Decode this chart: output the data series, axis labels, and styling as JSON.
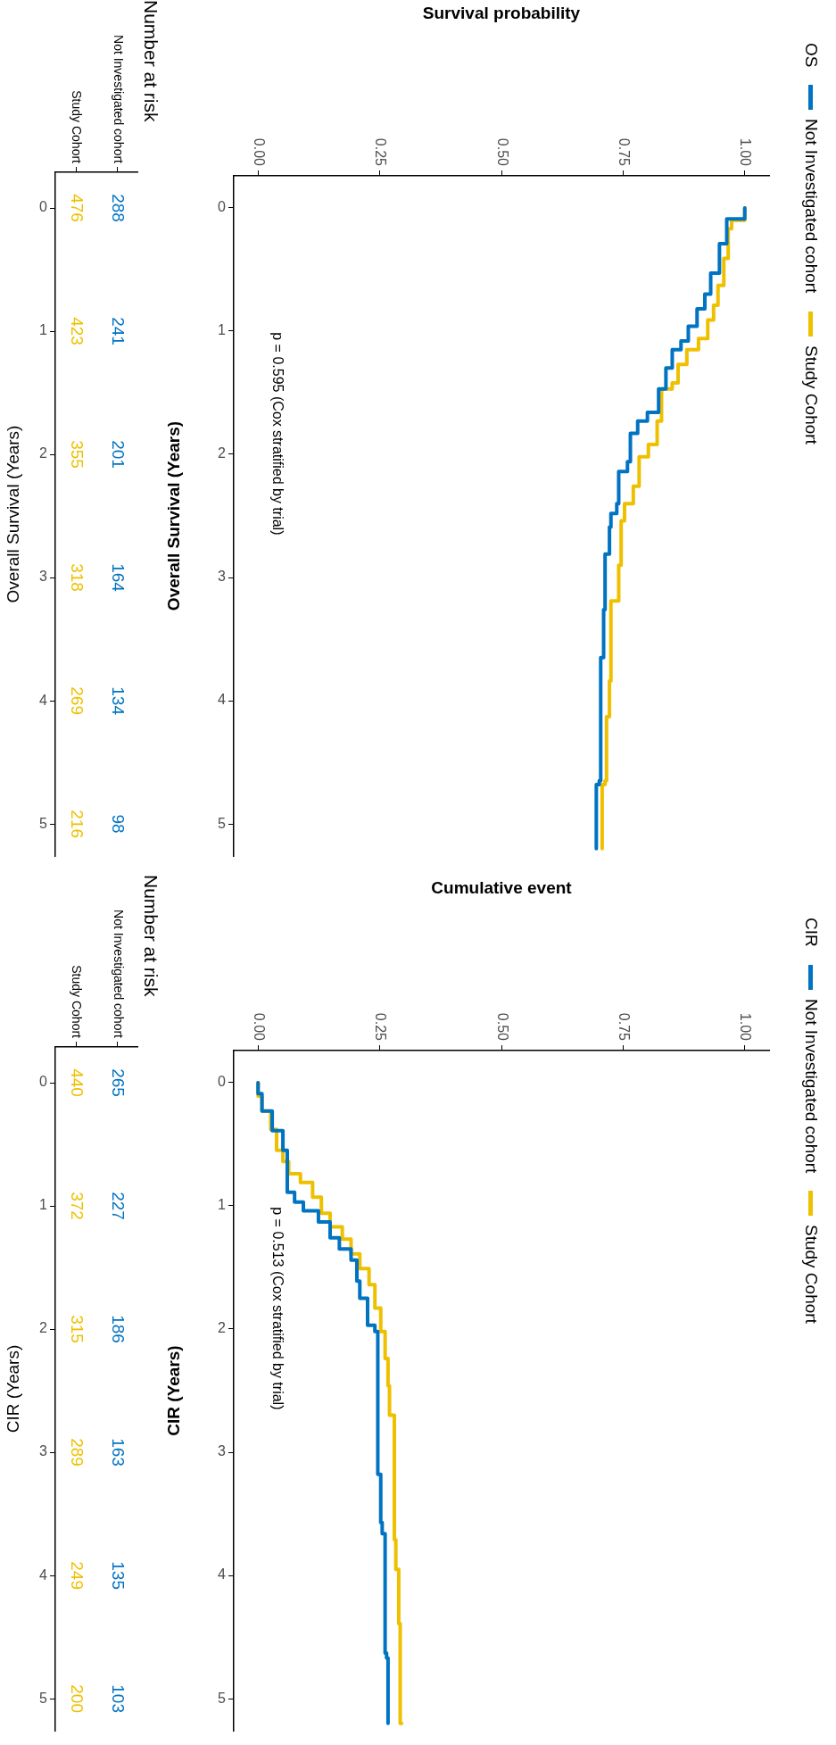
{
  "chart_data": [
    {
      "type": "step",
      "xlabel": "Survival probability",
      "ylabel": "Overall Survival (Years)",
      "legend": "right",
      "legend_title": "OS",
      "ylim": [
        5.26,
        -0.26
      ],
      "yticks": [
        0,
        1,
        2,
        3,
        4,
        5
      ],
      "xlim": [
        -0.05,
        1.05
      ],
      "xticks": [
        {
          "value": 0,
          "label": "0.00"
        },
        {
          "value": 0.25,
          "label": "0.25"
        },
        {
          "value": 0.5,
          "label": "0.50"
        },
        {
          "value": 0.75,
          "label": "0.75"
        },
        {
          "value": 1,
          "label": "1.00"
        }
      ],
      "annotations": [
        "p = 0.595 (Cox stratified by trial)"
      ],
      "series": [
        {
          "name": "Not Investigated cohort",
          "color": "#0073c2",
          "values": [
            0,
            0.09,
            0.29,
            0.53,
            0.7,
            0.82,
            0.96,
            1.08,
            1.15,
            1.3,
            1.47,
            1.66,
            1.73,
            1.83,
            2.06,
            2.14,
            2.4,
            2.48,
            2.59,
            2.81,
            3.26,
            3.65,
            4.65,
            4.68,
            5.2
          ],
          "x": [
            1.0,
            0.963,
            0.948,
            0.93,
            0.918,
            0.902,
            0.884,
            0.869,
            0.851,
            0.838,
            0.823,
            0.8,
            0.78,
            0.765,
            0.759,
            0.741,
            0.737,
            0.725,
            0.722,
            0.713,
            0.71,
            0.704,
            0.701,
            0.695,
            0.695
          ]
        },
        {
          "name": "Study Cohort",
          "color": "#efc000",
          "values": [
            0,
            0.1,
            0.17,
            0.41,
            0.63,
            0.79,
            0.91,
            1.06,
            1.15,
            1.27,
            1.42,
            1.47,
            1.73,
            1.92,
            2.02,
            2.26,
            2.4,
            2.54,
            2.9,
            3.19,
            3.84,
            4.13,
            4.65,
            4.68,
            5.2
          ],
          "x": [
            1.0,
            0.973,
            0.966,
            0.957,
            0.945,
            0.936,
            0.924,
            0.905,
            0.881,
            0.863,
            0.851,
            0.829,
            0.82,
            0.802,
            0.783,
            0.771,
            0.753,
            0.746,
            0.741,
            0.725,
            0.722,
            0.716,
            0.713,
            0.707,
            0.707
          ]
        }
      ]
    },
    {
      "type": "heatmap",
      "title": "Number at risk",
      "ylabel": "Overall Survival (Years)",
      "data_labels": true,
      "categories": [
        "Study Cohort",
        "Not Investigated cohort"
      ],
      "y_categories": [
        "0",
        "1",
        "2",
        "3",
        "4",
        "5"
      ],
      "colors": [
        "#efc000",
        "#0073c2"
      ],
      "cells": [
        [
          476,
          288
        ],
        [
          423,
          241
        ],
        [
          355,
          201
        ],
        [
          318,
          164
        ],
        [
          269,
          134
        ],
        [
          216,
          98
        ]
      ]
    },
    {
      "type": "step",
      "xlabel": "Cumulative event",
      "ylabel": "CIR (Years)",
      "legend": "right",
      "legend_title": "CIR",
      "ylim": [
        5.26,
        -0.26
      ],
      "yticks": [
        0,
        1,
        2,
        3,
        4,
        5
      ],
      "xlim": [
        -0.05,
        1.05
      ],
      "xticks": [
        {
          "value": 0,
          "label": "0.00"
        },
        {
          "value": 0.25,
          "label": "0.25"
        },
        {
          "value": 0.5,
          "label": "0.50"
        },
        {
          "value": 0.75,
          "label": "0.75"
        },
        {
          "value": 1,
          "label": "1.00"
        }
      ],
      "annotations": [
        "p = 0.513 (Cox stratified by trial)"
      ],
      "series": [
        {
          "name": "Not Investigated cohort",
          "color": "#0073c2",
          "values": [
            0,
            0.09,
            0.23,
            0.39,
            0.55,
            0.77,
            0.89,
            0.97,
            1.04,
            1.13,
            1.26,
            1.35,
            1.44,
            1.61,
            1.75,
            1.97,
            2.02,
            3.16,
            3.18,
            3.57,
            3.66,
            4.63,
            4.67,
            5.2
          ],
          "x": [
            0,
            0.008,
            0.029,
            0.051,
            0.06,
            0.06,
            0.075,
            0.093,
            0.124,
            0.148,
            0.167,
            0.191,
            0.203,
            0.209,
            0.225,
            0.24,
            0.246,
            0.246,
            0.252,
            0.255,
            0.261,
            0.264,
            0.267,
            0.267
          ]
        },
        {
          "name": "Study Cohort",
          "color": "#efc000",
          "values": [
            0,
            0.11,
            0.23,
            0.38,
            0.55,
            0.64,
            0.74,
            0.81,
            0.93,
            1.06,
            1.17,
            1.27,
            1.39,
            1.51,
            1.64,
            1.83,
            2.02,
            2.24,
            2.46,
            2.7,
            3.71,
            3.95,
            4.39,
            5.2
          ],
          "x": [
            0,
            0.008,
            0.026,
            0.038,
            0.051,
            0.063,
            0.087,
            0.112,
            0.13,
            0.148,
            0.173,
            0.191,
            0.209,
            0.228,
            0.24,
            0.252,
            0.261,
            0.267,
            0.27,
            0.28,
            0.283,
            0.289,
            0.292,
            0.295
          ]
        }
      ]
    },
    {
      "type": "heatmap",
      "title": "Number at risk",
      "ylabel": "CIR (Years)",
      "data_labels": true,
      "categories": [
        "Study Cohort",
        "Not Investigated cohort"
      ],
      "y_categories": [
        "0",
        "1",
        "2",
        "3",
        "4",
        "5"
      ],
      "colors": [
        "#efc000",
        "#0073c2"
      ],
      "cells": [
        [
          440,
          265
        ],
        [
          372,
          227
        ],
        [
          315,
          186
        ],
        [
          289,
          163
        ],
        [
          249,
          135
        ],
        [
          200,
          103
        ]
      ]
    }
  ]
}
